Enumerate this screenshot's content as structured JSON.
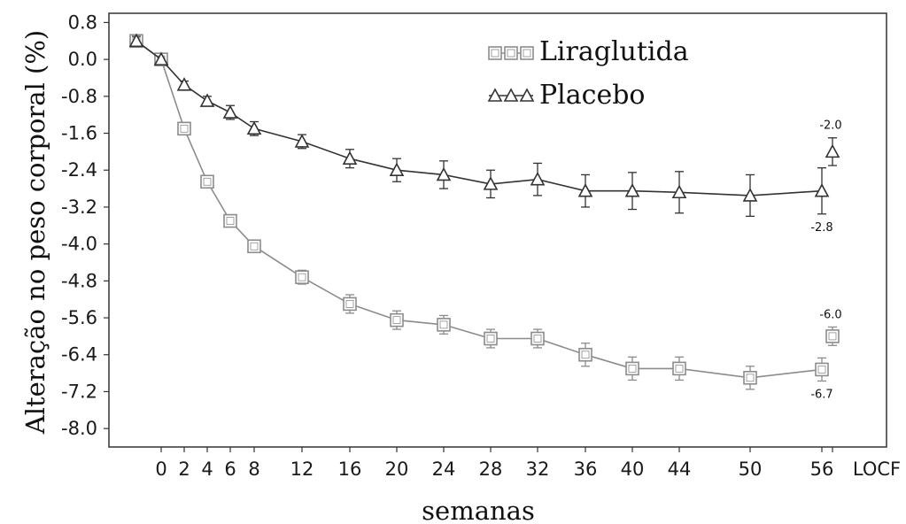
{
  "chart_data": {
    "type": "line",
    "title": "",
    "xlabel": "semanas",
    "ylabel": "Alteração no peso corporal (%)",
    "categories": [
      "",
      "0",
      "2",
      "4",
      "6",
      "8",
      "12",
      "16",
      "20",
      "24",
      "28",
      "32",
      "36",
      "40",
      "44",
      "50",
      "56",
      "LOCF"
    ],
    "ylim": [
      -8.4,
      1.0
    ],
    "y_ticks": [
      "0.8",
      "0.0",
      "-0.8",
      "-1.6",
      "-2.4",
      "-3.2",
      "-4.0",
      "-4.8",
      "-5.6",
      "-6.4",
      "-7.2",
      "-8.0"
    ],
    "legend_position": "top-center",
    "grid": false,
    "series": [
      {
        "name": "Liraglutida",
        "marker": "square",
        "color": "#8c8c8c",
        "points": [
          {
            "x": "",
            "y": 0.4,
            "err": 0.1
          },
          {
            "x": "0",
            "y": 0.0,
            "err": 0.0
          },
          {
            "x": "2",
            "y": -1.5,
            "err": 0.1
          },
          {
            "x": "4",
            "y": -2.65,
            "err": 0.1
          },
          {
            "x": "6",
            "y": -3.5,
            "err": 0.1
          },
          {
            "x": "8",
            "y": -4.05,
            "err": 0.1
          },
          {
            "x": "12",
            "y": -4.72,
            "err": 0.15
          },
          {
            "x": "16",
            "y": -5.3,
            "err": 0.2
          },
          {
            "x": "20",
            "y": -5.65,
            "err": 0.2
          },
          {
            "x": "24",
            "y": -5.75,
            "err": 0.2
          },
          {
            "x": "28",
            "y": -6.05,
            "err": 0.2
          },
          {
            "x": "32",
            "y": -6.05,
            "err": 0.2
          },
          {
            "x": "36",
            "y": -6.4,
            "err": 0.25
          },
          {
            "x": "40",
            "y": -6.7,
            "err": 0.25
          },
          {
            "x": "44",
            "y": -6.7,
            "err": 0.25
          },
          {
            "x": "50",
            "y": -6.9,
            "err": 0.25
          },
          {
            "x": "56",
            "y": -6.72,
            "err": 0.25
          },
          {
            "x": "LOCF",
            "y": -6.0,
            "err": 0.2
          }
        ],
        "end_labels": [
          {
            "x": "LOCF",
            "text": "-6.0",
            "position": "above"
          },
          {
            "x": "56",
            "text": "-6.7",
            "position": "below"
          }
        ]
      },
      {
        "name": "Placebo",
        "marker": "triangle",
        "color": "#333333",
        "points": [
          {
            "x": "",
            "y": 0.4,
            "err": 0.1
          },
          {
            "x": "0",
            "y": 0.0,
            "err": 0.0
          },
          {
            "x": "2",
            "y": -0.55,
            "err": 0.08
          },
          {
            "x": "4",
            "y": -0.9,
            "err": 0.1
          },
          {
            "x": "6",
            "y": -1.15,
            "err": 0.15
          },
          {
            "x": "8",
            "y": -1.5,
            "err": 0.15
          },
          {
            "x": "12",
            "y": -1.78,
            "err": 0.15
          },
          {
            "x": "16",
            "y": -2.15,
            "err": 0.2
          },
          {
            "x": "20",
            "y": -2.4,
            "err": 0.25
          },
          {
            "x": "24",
            "y": -2.5,
            "err": 0.3
          },
          {
            "x": "28",
            "y": -2.7,
            "err": 0.3
          },
          {
            "x": "32",
            "y": -2.6,
            "err": 0.35
          },
          {
            "x": "36",
            "y": -2.85,
            "err": 0.35
          },
          {
            "x": "40",
            "y": -2.85,
            "err": 0.4
          },
          {
            "x": "44",
            "y": -2.88,
            "err": 0.45
          },
          {
            "x": "50",
            "y": -2.95,
            "err": 0.45
          },
          {
            "x": "56",
            "y": -2.85,
            "err": 0.5
          },
          {
            "x": "LOCF",
            "y": -2.0,
            "err": 0.3
          }
        ],
        "end_labels": [
          {
            "x": "LOCF",
            "text": "-2.0",
            "position": "above"
          },
          {
            "x": "56",
            "text": "-2.8",
            "position": "below"
          }
        ]
      }
    ]
  }
}
